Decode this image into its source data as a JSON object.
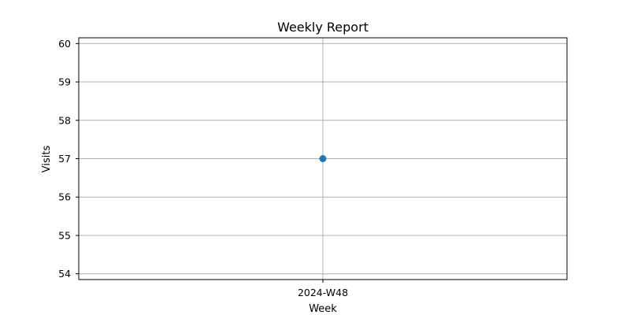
{
  "chart_data": {
    "type": "line",
    "title": "Weekly Report",
    "xlabel": "Week",
    "ylabel": "Visits",
    "categories": [
      "2024-W48"
    ],
    "series": [
      {
        "values": [
          57
        ],
        "color": "#1f77b4",
        "marker": "circle"
      }
    ],
    "ylim": [
      53.85,
      60.15
    ],
    "yticks": [
      54,
      55,
      56,
      57,
      58,
      59,
      60
    ],
    "grid": true
  }
}
